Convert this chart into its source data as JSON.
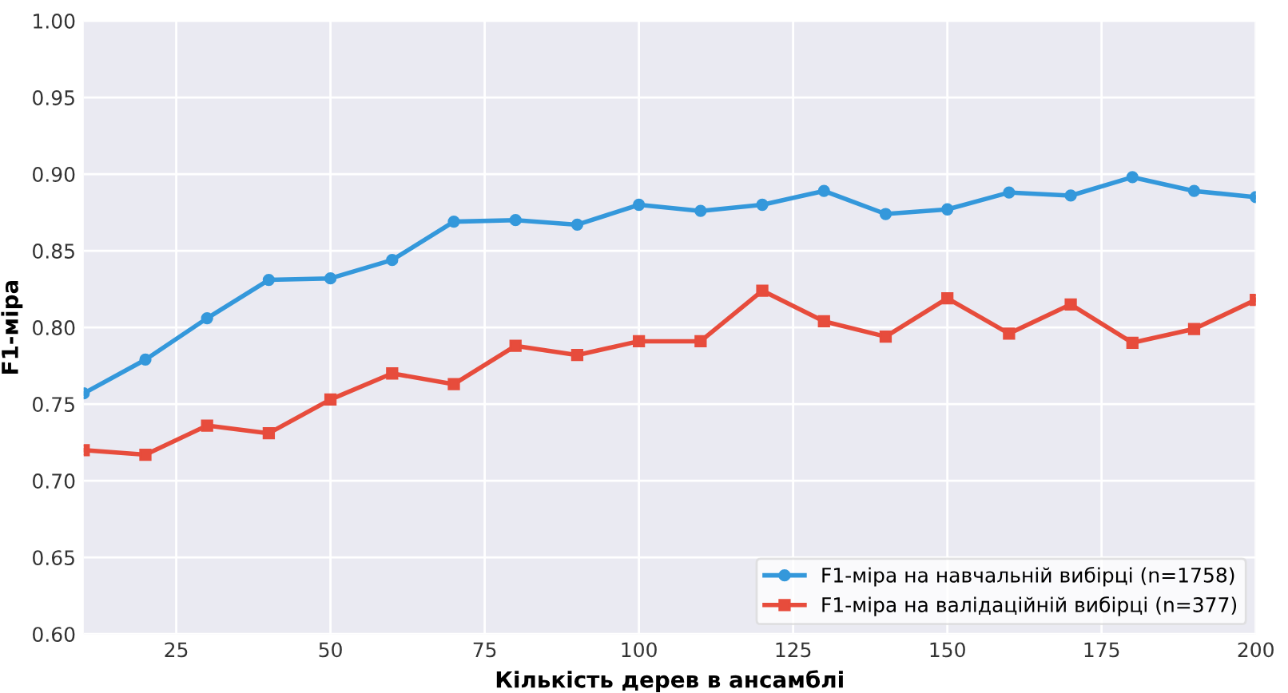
{
  "chart_data": {
    "type": "line",
    "xlabel": "Кількість дерев в ансамблі",
    "ylabel": "F1-міра",
    "x": [
      10,
      20,
      30,
      40,
      50,
      60,
      70,
      80,
      90,
      100,
      110,
      120,
      130,
      140,
      150,
      160,
      170,
      180,
      190,
      200
    ],
    "series": [
      {
        "name": "F1-міра на навчальній вибірці (n=1758)",
        "color": "#3498db",
        "marker": "circle",
        "values": [
          0.757,
          0.779,
          0.806,
          0.831,
          0.832,
          0.844,
          0.869,
          0.87,
          0.867,
          0.88,
          0.876,
          0.88,
          0.889,
          0.874,
          0.877,
          0.888,
          0.886,
          0.898,
          0.889,
          0.885
        ]
      },
      {
        "name": "F1-міра на валідаційній вибірці (n=377)",
        "color": "#e74c3c",
        "marker": "square",
        "values": [
          0.72,
          0.717,
          0.736,
          0.731,
          0.753,
          0.77,
          0.763,
          0.788,
          0.782,
          0.791,
          0.791,
          0.824,
          0.804,
          0.794,
          0.819,
          0.796,
          0.815,
          0.79,
          0.799,
          0.818
        ]
      }
    ],
    "xlim": [
      10,
      200
    ],
    "xticks": [
      25,
      50,
      75,
      100,
      125,
      150,
      175,
      200
    ],
    "ylim": [
      0.6,
      1.0
    ],
    "yticks": [
      {
        "value": 0.6,
        "label": "0.60"
      },
      {
        "value": 0.65,
        "label": "0.65"
      },
      {
        "value": 0.7,
        "label": "0.70"
      },
      {
        "value": 0.75,
        "label": "0.75"
      },
      {
        "value": 0.8,
        "label": "0.80"
      },
      {
        "value": 0.85,
        "label": "0.85"
      },
      {
        "value": 0.9,
        "label": "0.90"
      },
      {
        "value": 0.95,
        "label": "0.95"
      },
      {
        "value": 1.0,
        "label": "1.00"
      }
    ],
    "grid": true,
    "legend": "bottom right",
    "line_style": "solid"
  }
}
